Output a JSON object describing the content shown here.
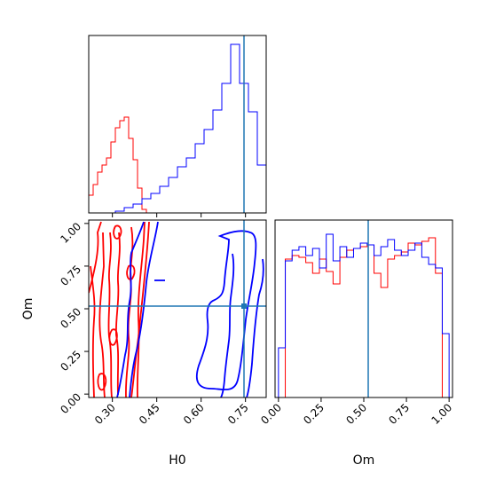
{
  "chart_data": {
    "type": "corner",
    "parameters": [
      "H0",
      "Om"
    ],
    "truth": {
      "H0": 0.75,
      "Om": 0.53
    },
    "colors": {
      "red_run": "#ff0000",
      "blue_run": "#0000ff",
      "truth": "#1f77b4"
    },
    "panels": [
      {
        "id": "H0-marginal",
        "type": "histogram",
        "xlim": [
          0.22,
          0.82
        ],
        "xticks": [
          0.3,
          0.45,
          0.6,
          0.75
        ],
        "y_axis_ticks": false,
        "series": [
          {
            "color": "red_run",
            "bins": [
              0.22,
              0.235,
              0.25,
              0.265,
              0.28,
              0.295,
              0.31,
              0.325,
              0.34,
              0.355,
              0.37,
              0.385,
              0.4,
              0.415
            ],
            "counts": [
              0.1,
              0.16,
              0.23,
              0.27,
              0.31,
              0.4,
              0.48,
              0.52,
              0.54,
              0.42,
              0.3,
              0.14,
              0.02
            ]
          },
          {
            "color": "blue_run",
            "bins": [
              0.22,
              0.25,
              0.28,
              0.31,
              0.34,
              0.37,
              0.4,
              0.43,
              0.46,
              0.49,
              0.52,
              0.55,
              0.58,
              0.61,
              0.64,
              0.67,
              0.7,
              0.73,
              0.76,
              0.79,
              0.82
            ],
            "counts": [
              0.0,
              0.0,
              0.0,
              0.01,
              0.03,
              0.05,
              0.08,
              0.11,
              0.15,
              0.2,
              0.26,
              0.31,
              0.39,
              0.47,
              0.58,
              0.73,
              0.95,
              0.73,
              0.57,
              0.27,
              0.1
            ]
          }
        ]
      },
      {
        "id": "Om-vs-H0",
        "type": "contour",
        "xlim": [
          0.22,
          0.82
        ],
        "ylim": [
          -0.02,
          1.02
        ],
        "xticks": [
          0.3,
          0.45,
          0.6,
          0.75
        ],
        "yticks": [
          0.0,
          0.25,
          0.5,
          0.75,
          1.0
        ],
        "xlabel": "H0",
        "ylabel": "Om",
        "series": [
          {
            "color": "red_run",
            "H0_region": [
              0.22,
              0.4
            ],
            "Om_region": [
              0.0,
              1.0
            ]
          },
          {
            "color": "blue_run",
            "H0_region": [
              0.33,
              0.82
            ],
            "Om_region": [
              0.0,
              1.0
            ]
          }
        ]
      },
      {
        "id": "Om-marginal",
        "type": "histogram",
        "xlim": [
          -0.02,
          1.02
        ],
        "xticks": [
          0.0,
          0.25,
          0.5,
          0.75,
          1.0
        ],
        "xlabel": "Om",
        "y_axis_ticks": false,
        "series": [
          {
            "color": "red_run",
            "bins": [
              0.0,
              0.04,
              0.08,
              0.12,
              0.16,
              0.2,
              0.24,
              0.28,
              0.32,
              0.36,
              0.4,
              0.44,
              0.48,
              0.52,
              0.56,
              0.6,
              0.64,
              0.68,
              0.72,
              0.76,
              0.8,
              0.84,
              0.88,
              0.92,
              0.96,
              1.0
            ],
            "counts": [
              0.0,
              0.78,
              0.8,
              0.79,
              0.76,
              0.7,
              0.78,
              0.71,
              0.64,
              0.79,
              0.83,
              0.84,
              0.85,
              0.86,
              0.7,
              0.62,
              0.78,
              0.8,
              0.82,
              0.87,
              0.86,
              0.88,
              0.9,
              0.7,
              0.0
            ]
          },
          {
            "color": "blue_run",
            "bins": [
              0.0,
              0.04,
              0.08,
              0.12,
              0.16,
              0.2,
              0.24,
              0.28,
              0.32,
              0.36,
              0.4,
              0.44,
              0.48,
              0.52,
              0.56,
              0.6,
              0.64,
              0.68,
              0.72,
              0.76,
              0.8,
              0.84,
              0.88,
              0.92,
              0.96,
              1.0
            ],
            "counts": [
              0.28,
              0.77,
              0.83,
              0.85,
              0.8,
              0.84,
              0.73,
              0.92,
              0.77,
              0.85,
              0.79,
              0.84,
              0.87,
              0.86,
              0.8,
              0.85,
              0.89,
              0.83,
              0.8,
              0.83,
              0.87,
              0.79,
              0.75,
              0.73,
              0.36
            ]
          }
        ]
      }
    ]
  }
}
